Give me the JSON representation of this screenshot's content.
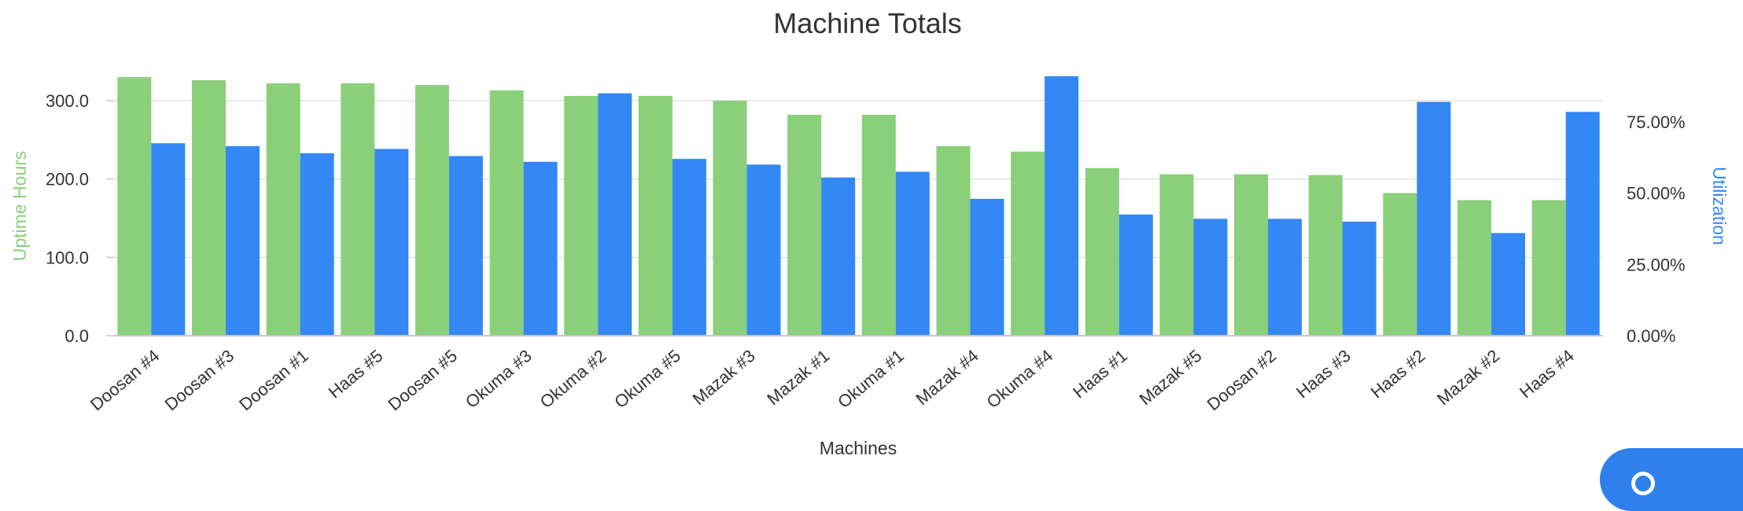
{
  "colors": {
    "uptime": "#8acf7a",
    "utilization": "#3388f5",
    "grid": "#e2e2e2",
    "axis_line": "#c8c8c8",
    "help_button": "#2f80ed"
  },
  "help": {
    "icon": "question-circle-icon"
  },
  "chart_data": {
    "type": "bar",
    "title": "Machine Totals",
    "xlabel": "Machines",
    "categories": [
      "Doosan #4",
      "Doosan #3",
      "Doosan #1",
      "Haas #5",
      "Doosan #5",
      "Okuma #3",
      "Okuma #2",
      "Okuma #5",
      "Mazak #3",
      "Mazak #1",
      "Okuma #1",
      "Mazak #4",
      "Okuma #4",
      "Haas #1",
      "Mazak #5",
      "Doosan #2",
      "Haas #3",
      "Haas #2",
      "Mazak #2",
      "Haas #4"
    ],
    "series": [
      {
        "name": "Uptime Hours",
        "axis": "left",
        "values": [
          330,
          326,
          322,
          322,
          320,
          313,
          306,
          306,
          300,
          282,
          282,
          242,
          235,
          214,
          206,
          206,
          205,
          182,
          173,
          173
        ]
      },
      {
        "name": "Utilization",
        "axis": "right",
        "values": [
          0.675,
          0.665,
          0.64,
          0.655,
          0.63,
          0.61,
          0.85,
          0.62,
          0.6,
          0.555,
          0.575,
          0.48,
          0.91,
          0.425,
          0.41,
          0.41,
          0.4,
          0.82,
          0.36,
          0.785
        ]
      }
    ],
    "left_axis": {
      "label": "Uptime Hours",
      "ylim": [
        0,
        330
      ],
      "ticks": [
        0,
        100,
        200,
        300
      ],
      "tick_labels": [
        "0.0",
        "100.0",
        "200.0",
        "300.0"
      ]
    },
    "right_axis": {
      "label": "Utilization",
      "ylim": [
        0,
        0.9
      ],
      "ticks": [
        0,
        0.25,
        0.5,
        0.75
      ],
      "tick_labels": [
        "0.00%",
        "25.00%",
        "50.00%",
        "75.00%"
      ]
    },
    "grid": true,
    "legend": "none"
  }
}
